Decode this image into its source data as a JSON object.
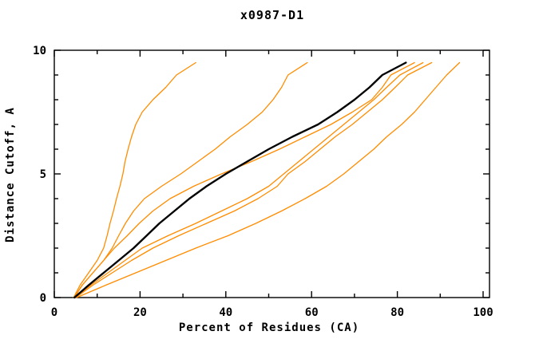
{
  "chart_data": {
    "type": "line",
    "title": "x0987-D1",
    "xlabel": "Percent of Residues (CA)",
    "ylabel": "Distance Cutoff, A",
    "xlim": [
      0,
      100
    ],
    "ylim": [
      0,
      10
    ],
    "grid": "off",
    "legend": "none",
    "x_major_ticks": [
      0,
      20,
      40,
      60,
      80,
      100
    ],
    "x_tick_labels": [
      "0",
      "20",
      "40",
      "60",
      "80",
      "100"
    ],
    "x_minor_ticks": [
      10,
      30,
      50,
      70,
      90
    ],
    "y_major_ticks": [
      0,
      5,
      10
    ],
    "y_tick_labels": [
      "0",
      "5",
      "10"
    ],
    "y_minor_ticks": [
      1,
      2,
      3,
      4,
      6,
      7,
      8,
      9
    ],
    "colors": {
      "model_line": "#ff8c00",
      "reference_line": "#000000",
      "axis": "#000000"
    },
    "series": [
      {
        "name": "orange-model-1",
        "color": "#ff8c00",
        "width": 1.3,
        "points": [
          [
            4.5,
            0
          ],
          [
            6,
            0.5
          ],
          [
            8,
            1
          ],
          [
            10,
            1.5
          ],
          [
            11.5,
            2
          ],
          [
            12.3,
            2.5
          ],
          [
            13,
            3
          ],
          [
            13.8,
            3.5
          ],
          [
            14.5,
            4
          ],
          [
            15.3,
            4.5
          ],
          [
            16,
            5
          ],
          [
            16.5,
            5.5
          ],
          [
            17.2,
            6
          ],
          [
            18,
            6.5
          ],
          [
            19,
            7
          ],
          [
            20.5,
            7.5
          ],
          [
            23,
            8
          ],
          [
            26,
            8.5
          ],
          [
            28.5,
            9
          ],
          [
            33,
            9.5
          ]
        ]
      },
      {
        "name": "orange-model-2",
        "color": "#ff8c00",
        "width": 1.3,
        "points": [
          [
            4.7,
            0
          ],
          [
            6.5,
            0.5
          ],
          [
            9,
            1
          ],
          [
            11.5,
            1.5
          ],
          [
            13.5,
            2
          ],
          [
            15,
            2.5
          ],
          [
            16.6,
            3
          ],
          [
            18.5,
            3.5
          ],
          [
            21,
            4
          ],
          [
            25,
            4.5
          ],
          [
            29.5,
            5
          ],
          [
            33.5,
            5.5
          ],
          [
            37.5,
            6
          ],
          [
            41,
            6.5
          ],
          [
            45,
            7
          ],
          [
            48.5,
            7.5
          ],
          [
            51,
            8
          ],
          [
            53,
            8.5
          ],
          [
            54.5,
            9
          ],
          [
            59,
            9.5
          ]
        ]
      },
      {
        "name": "orange-model-3",
        "color": "#ff8c00",
        "width": 1.3,
        "points": [
          [
            4.6,
            0
          ],
          [
            6.5,
            0.5
          ],
          [
            9,
            1
          ],
          [
            11.5,
            1.5
          ],
          [
            14,
            2
          ],
          [
            17,
            2.5
          ],
          [
            19.8,
            3
          ],
          [
            23,
            3.5
          ],
          [
            27,
            4
          ],
          [
            32.5,
            4.5
          ],
          [
            39,
            5
          ],
          [
            46,
            5.5
          ],
          [
            52.5,
            6
          ],
          [
            58.5,
            6.5
          ],
          [
            64.5,
            7
          ],
          [
            69.5,
            7.5
          ],
          [
            74,
            8
          ],
          [
            76.5,
            8.5
          ],
          [
            78.5,
            9
          ],
          [
            84,
            9.5
          ]
        ]
      },
      {
        "name": "orange-model-4",
        "color": "#ff8c00",
        "width": 1.3,
        "points": [
          [
            4.8,
            0
          ],
          [
            8.5,
            0.5
          ],
          [
            12.5,
            1
          ],
          [
            16.5,
            1.5
          ],
          [
            20.5,
            2
          ],
          [
            26.5,
            2.5
          ],
          [
            33,
            3
          ],
          [
            39,
            3.5
          ],
          [
            45,
            4
          ],
          [
            50,
            4.5
          ],
          [
            53.5,
            5
          ],
          [
            57,
            5.5
          ],
          [
            60.5,
            6
          ],
          [
            64,
            6.5
          ],
          [
            67.5,
            7
          ],
          [
            71,
            7.5
          ],
          [
            74.5,
            8
          ],
          [
            77.5,
            8.5
          ],
          [
            80.6,
            9
          ],
          [
            86,
            9.5
          ]
        ]
      },
      {
        "name": "orange-model-5",
        "color": "#ff8c00",
        "width": 1.3,
        "points": [
          [
            5,
            0
          ],
          [
            9,
            0.5
          ],
          [
            13.5,
            1
          ],
          [
            18,
            1.5
          ],
          [
            23,
            2
          ],
          [
            29,
            2.5
          ],
          [
            35.5,
            3
          ],
          [
            42,
            3.5
          ],
          [
            47.5,
            4
          ],
          [
            52,
            4.5
          ],
          [
            54.5,
            5
          ],
          [
            58.5,
            5.5
          ],
          [
            62,
            6
          ],
          [
            65.5,
            6.5
          ],
          [
            69.5,
            7
          ],
          [
            73,
            7.5
          ],
          [
            76.5,
            8
          ],
          [
            79.5,
            8.5
          ],
          [
            82.4,
            9
          ],
          [
            88,
            9.5
          ]
        ]
      },
      {
        "name": "orange-model-6",
        "color": "#ff8c00",
        "width": 1.3,
        "points": [
          [
            5.2,
            0
          ],
          [
            12,
            0.5
          ],
          [
            19,
            1
          ],
          [
            26,
            1.5
          ],
          [
            33,
            2
          ],
          [
            40.5,
            2.5
          ],
          [
            47,
            3
          ],
          [
            53,
            3.5
          ],
          [
            58.5,
            4
          ],
          [
            63.5,
            4.5
          ],
          [
            67.5,
            5
          ],
          [
            71,
            5.5
          ],
          [
            74.5,
            6
          ],
          [
            77.5,
            6.5
          ],
          [
            81,
            7
          ],
          [
            84,
            7.5
          ],
          [
            86.5,
            8
          ],
          [
            89,
            8.5
          ],
          [
            91.5,
            9
          ],
          [
            94.5,
            9.5
          ]
        ]
      },
      {
        "name": "black-reference",
        "color": "#000000",
        "width": 2.4,
        "points": [
          [
            4.7,
            0
          ],
          [
            8,
            0.5
          ],
          [
            11.5,
            1
          ],
          [
            15,
            1.5
          ],
          [
            18.5,
            2
          ],
          [
            21.5,
            2.5
          ],
          [
            24.5,
            3
          ],
          [
            28,
            3.5
          ],
          [
            31.5,
            4
          ],
          [
            35.5,
            4.5
          ],
          [
            40,
            5
          ],
          [
            45,
            5.5
          ],
          [
            50,
            6
          ],
          [
            55.5,
            6.5
          ],
          [
            61.5,
            7
          ],
          [
            66,
            7.5
          ],
          [
            70,
            8
          ],
          [
            73.5,
            8.5
          ],
          [
            76.5,
            9
          ],
          [
            82,
            9.5
          ]
        ]
      }
    ]
  }
}
